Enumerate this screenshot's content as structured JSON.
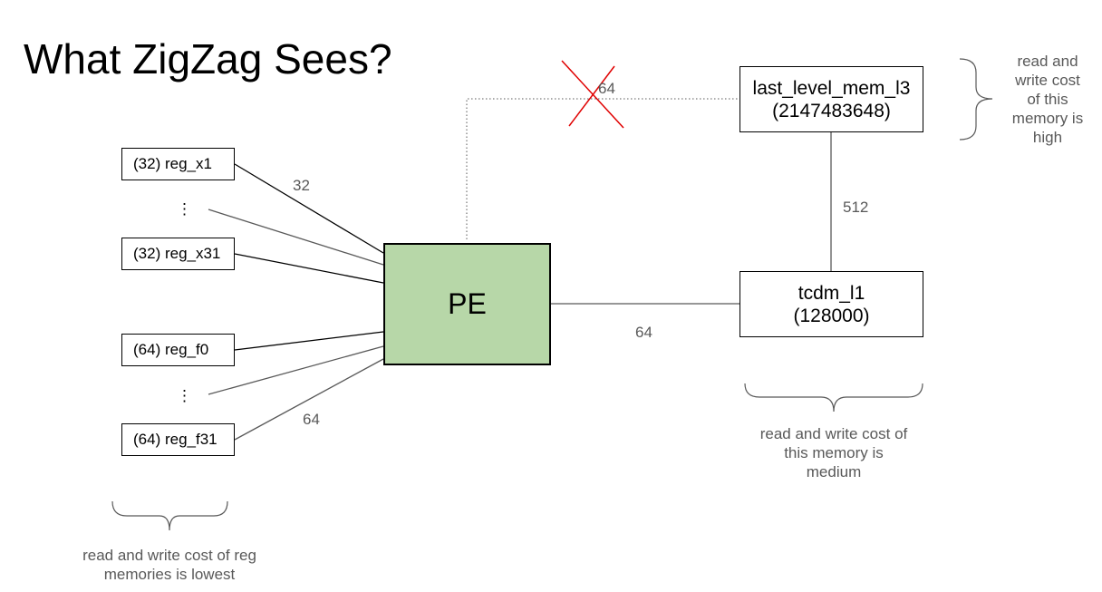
{
  "title": "What ZigZag Sees?",
  "pe": {
    "label": "PE"
  },
  "registers": {
    "reg_x1": "(32) reg_x1",
    "reg_x31": "(32) reg_x31",
    "reg_f0": "(64) reg_f0",
    "reg_f31": "(64) reg_f31",
    "ellipsis": "⋮"
  },
  "memories": {
    "l3": {
      "name": "last_level_mem_l3",
      "size": "(2147483648)"
    },
    "l1": {
      "name": "tcdm_l1",
      "size": "(128000)"
    }
  },
  "bandwidths": {
    "x_regs": "32",
    "f_regs": "64",
    "pe_to_l3": "64",
    "l3_to_l1": "512",
    "pe_to_l1": "64"
  },
  "notes": {
    "reg": [
      "read and write cost of reg",
      "memories is lowest"
    ],
    "l1": [
      "read and write cost of",
      "this memory is",
      "medium"
    ],
    "l3": [
      "read and",
      "write cost",
      "of this",
      "memory is",
      "high"
    ]
  },
  "colors": {
    "pe_fill": "#b7d7a8",
    "cross": "#e00000",
    "label_gray": "#595959"
  }
}
